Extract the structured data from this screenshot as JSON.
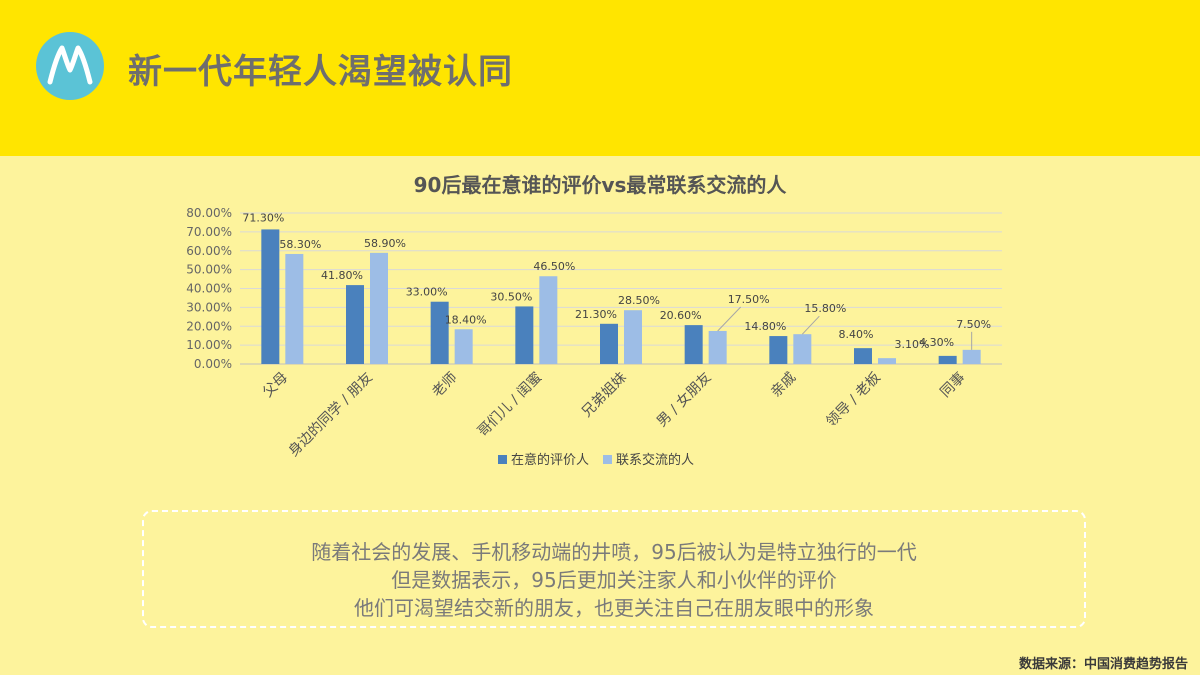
{
  "header": {
    "title": "新一代年轻人渴望被认同"
  },
  "logo": {
    "icon": "motorola-batwing-icon",
    "color": "#5BC3D6"
  },
  "chart_data": {
    "type": "bar",
    "title": "90后最在意谁的评价vs最常联系交流的人",
    "categories": [
      "父母",
      "身边的同学 / 朋友",
      "老师",
      "哥们儿 / 闺蜜",
      "兄弟姐妹",
      "男 / 女朋友",
      "亲戚",
      "领导 / 老板",
      "同事"
    ],
    "series": [
      {
        "name": "在意的评价人",
        "color": "#4A81BD",
        "values": [
          71.3,
          41.8,
          33.0,
          30.5,
          21.3,
          20.6,
          14.8,
          8.4,
          4.3
        ],
        "labels": [
          "71.30%",
          "41.80%",
          "33.00%",
          "30.50%",
          "21.30%",
          "20.60%",
          "14.80%",
          "8.40%",
          "4.30%"
        ]
      },
      {
        "name": "联系交流的人",
        "color": "#9DBDE6",
        "values": [
          58.3,
          58.9,
          18.4,
          46.5,
          28.5,
          17.5,
          15.8,
          3.1,
          7.5
        ],
        "labels": [
          "58.30%",
          "58.90%",
          "18.40%",
          "46.50%",
          "28.50%",
          "17.50%",
          "15.80%",
          "3.10%",
          "7.50%"
        ]
      }
    ],
    "ylim": [
      0,
      80
    ],
    "yticks": [
      "0.00%",
      "10.00%",
      "20.00%",
      "30.00%",
      "40.00%",
      "50.00%",
      "60.00%",
      "70.00%",
      "80.00%"
    ],
    "grid": true,
    "legend": "bottom"
  },
  "note": {
    "lines": [
      "随着社会的发展、手机移动端的井喷，95后被认为是特立独行的一代",
      "但是数据表示，95后更加关注家人和小伙伴的评价",
      "他们可渴望结交新的朋友，也更关注自己在朋友眼中的形象"
    ]
  },
  "source": "数据来源：中国消费趋势报告"
}
